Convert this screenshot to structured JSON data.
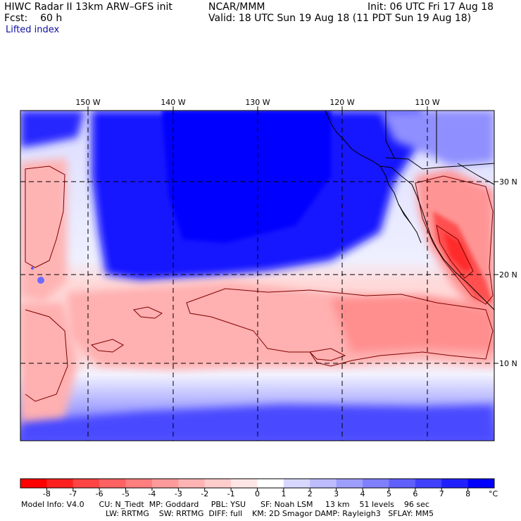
{
  "header": {
    "model": "HIWC Radar II 13km ARW–GFS init",
    "fcst_label": "Fcst:",
    "fcst_value": "60 h",
    "org": "NCAR/MMM",
    "init": "Init: 06 UTC Fri 17 Aug 18",
    "valid": "Valid: 18 UTC Sun 19 Aug 18 (11 PDT Sun 19 Aug 18)",
    "field": "Lifted index"
  },
  "map": {
    "lon_labels": [
      "150 W",
      "140 W",
      "130 W",
      "120 W",
      "110 W"
    ],
    "lat_labels": [
      "30 N",
      "20 N",
      "10 N"
    ]
  },
  "colorbar": {
    "unit": "°C",
    "ticks": [
      "-8",
      "-7",
      "-6",
      "-5",
      "-4",
      "-3",
      "-2",
      "-1",
      "0",
      "1",
      "2",
      "3",
      "4",
      "5",
      "6",
      "7",
      "8"
    ],
    "colors": [
      "#ff0000",
      "#ff2020",
      "#ff4444",
      "#ff6262",
      "#ff7e7e",
      "#ff9a9a",
      "#ffb4b4",
      "#ffcccc",
      "#ffe6e6",
      "#ffffff",
      "#d8d8ff",
      "#bcbcff",
      "#9e9eff",
      "#8080ff",
      "#6060ff",
      "#4040ff",
      "#2020ff",
      "#0000ff"
    ]
  },
  "footer": {
    "line1": "Model Info: V4.0      CU: N_Tiedt  MP: Goddard     PBL: YSU      SF: Noah LSM     13 km    51 levels    96 sec",
    "line2": "LW: RRTMG    SW: RRTMG  DIFF: full    KM: 2D Smagor DAMP: Rayleigh3   SFLAY: MM5"
  }
}
